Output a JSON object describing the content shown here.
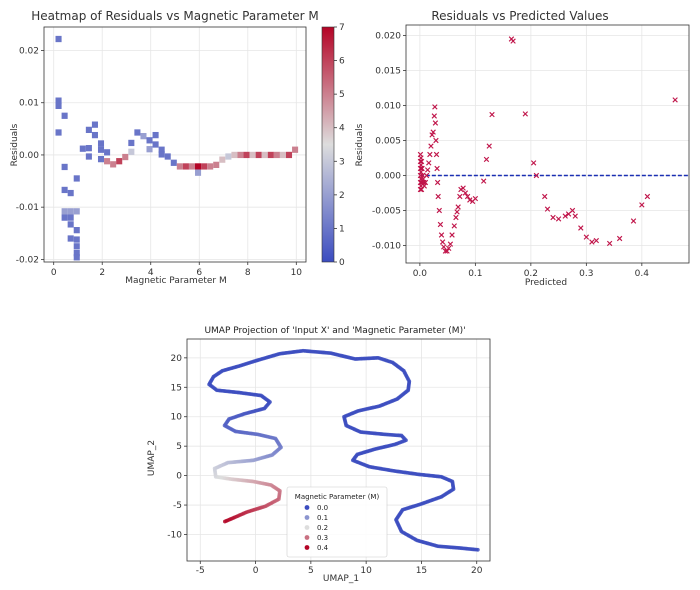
{
  "chart_data": [
    {
      "type": "heatmap",
      "title": "Heatmap of Residuals vs Magnetic Parameter M",
      "xlabel": "Magnetic Parameter M",
      "ylabel": "Residuals",
      "xlim": [
        -0.4,
        10.4
      ],
      "ylim": [
        -0.0205,
        0.0245
      ],
      "xticks": [
        "0",
        "2",
        "4",
        "6",
        "8",
        "10"
      ],
      "yticks": [
        "0.02",
        "0.01",
        "0.00",
        "-0.01",
        "-0.02"
      ],
      "colorbar": {
        "min": 0,
        "max": 7,
        "ticks": [
          "0",
          "1",
          "2",
          "3",
          "4",
          "5",
          "6",
          "7"
        ]
      },
      "cell_width": 0.25,
      "cell_height": 0.0012,
      "cells": [
        {
          "x": 0.2,
          "y": 0.0222,
          "v": 1
        },
        {
          "x": 0.2,
          "y": 0.0104,
          "v": 1
        },
        {
          "x": 0.2,
          "y": 0.0094,
          "v": 1
        },
        {
          "x": 0.2,
          "y": 0.0043,
          "v": 1
        },
        {
          "x": 0.45,
          "y": 0.0075,
          "v": 1
        },
        {
          "x": 0.45,
          "y": -0.0023,
          "v": 1
        },
        {
          "x": 0.45,
          "y": -0.0067,
          "v": 1
        },
        {
          "x": 0.45,
          "y": -0.0108,
          "v": 2
        },
        {
          "x": 0.7,
          "y": -0.0108,
          "v": 2
        },
        {
          "x": 0.45,
          "y": -0.012,
          "v": 1
        },
        {
          "x": 0.7,
          "y": -0.012,
          "v": 1
        },
        {
          "x": 0.7,
          "y": -0.0133,
          "v": 1
        },
        {
          "x": 0.95,
          "y": -0.0108,
          "v": 2
        },
        {
          "x": 0.95,
          "y": -0.0162,
          "v": 1
        },
        {
          "x": 0.95,
          "y": -0.0175,
          "v": 1
        },
        {
          "x": 0.95,
          "y": -0.0188,
          "v": 1
        },
        {
          "x": 0.7,
          "y": -0.016,
          "v": 1
        },
        {
          "x": 0.7,
          "y": -0.0073,
          "v": 1
        },
        {
          "x": 0.95,
          "y": -0.0144,
          "v": 1
        },
        {
          "x": 0.95,
          "y": -0.0196,
          "v": 1
        },
        {
          "x": 0.95,
          "y": -0.0045,
          "v": 1
        },
        {
          "x": 1.2,
          "y": 0.0012,
          "v": 1
        },
        {
          "x": 1.45,
          "y": 0.0013,
          "v": 1
        },
        {
          "x": 1.45,
          "y": 0.0048,
          "v": 1
        },
        {
          "x": 1.7,
          "y": 0.0058,
          "v": 1
        },
        {
          "x": 1.7,
          "y": 0.0038,
          "v": 1
        },
        {
          "x": 1.45,
          "y": -0.0003,
          "v": 1
        },
        {
          "x": 1.95,
          "y": 0.0022,
          "v": 1
        },
        {
          "x": 1.95,
          "y": 0.001,
          "v": 1
        },
        {
          "x": 1.95,
          "y": -0.0008,
          "v": 1
        },
        {
          "x": 2.2,
          "y": 0.0005,
          "v": 1
        },
        {
          "x": 2.2,
          "y": -0.0012,
          "v": 5
        },
        {
          "x": 2.45,
          "y": -0.0018,
          "v": 5
        },
        {
          "x": 2.7,
          "y": -0.0012,
          "v": 6
        },
        {
          "x": 2.95,
          "y": -0.0004,
          "v": 5
        },
        {
          "x": 3.2,
          "y": 0.0006,
          "v": 3
        },
        {
          "x": 3.2,
          "y": 0.0023,
          "v": 1
        },
        {
          "x": 3.45,
          "y": 0.0043,
          "v": 1
        },
        {
          "x": 3.7,
          "y": 0.0036,
          "v": 2
        },
        {
          "x": 3.95,
          "y": 0.0028,
          "v": 1
        },
        {
          "x": 3.95,
          "y": 0.0011,
          "v": 2
        },
        {
          "x": 4.2,
          "y": 0.002,
          "v": 1
        },
        {
          "x": 4.2,
          "y": 0.0038,
          "v": 1
        },
        {
          "x": 4.45,
          "y": 0.001,
          "v": 1
        },
        {
          "x": 4.45,
          "y": 0.0001,
          "v": 1
        },
        {
          "x": 4.7,
          "y": -0.0003,
          "v": 1
        },
        {
          "x": 4.95,
          "y": -0.0015,
          "v": 1
        },
        {
          "x": 5.2,
          "y": -0.0022,
          "v": 5
        },
        {
          "x": 5.45,
          "y": -0.0022,
          "v": 6
        },
        {
          "x": 5.7,
          "y": -0.0022,
          "v": 5
        },
        {
          "x": 5.95,
          "y": -0.0022,
          "v": 7
        },
        {
          "x": 6.2,
          "y": -0.0022,
          "v": 6
        },
        {
          "x": 6.45,
          "y": -0.0022,
          "v": 5
        },
        {
          "x": 6.7,
          "y": -0.0019,
          "v": 5
        },
        {
          "x": 5.95,
          "y": -0.0034,
          "v": 2
        },
        {
          "x": 6.95,
          "y": -0.0009,
          "v": 4
        },
        {
          "x": 7.2,
          "y": -0.0003,
          "v": 3
        },
        {
          "x": 7.45,
          "y": 0.0,
          "v": 4
        },
        {
          "x": 7.7,
          "y": 0.0,
          "v": 5
        },
        {
          "x": 7.95,
          "y": 0.0,
          "v": 6
        },
        {
          "x": 8.2,
          "y": 0.0,
          "v": 4
        },
        {
          "x": 8.45,
          "y": 0.0,
          "v": 6
        },
        {
          "x": 8.7,
          "y": 0.0,
          "v": 4
        },
        {
          "x": 8.95,
          "y": 0.0,
          "v": 6
        },
        {
          "x": 9.2,
          "y": 0.0,
          "v": 5
        },
        {
          "x": 9.45,
          "y": 0.0,
          "v": 4
        },
        {
          "x": 9.7,
          "y": 0.0,
          "v": 6
        },
        {
          "x": 9.95,
          "y": 0.001,
          "v": 5
        }
      ]
    },
    {
      "type": "scatter",
      "title": "Residuals vs Predicted Values",
      "xlabel": "Predicted",
      "ylabel": "Residuals",
      "xlim": [
        -0.025,
        0.485
      ],
      "ylim": [
        -0.0125,
        0.0215
      ],
      "xticks": [
        "0.0",
        "0.1",
        "0.2",
        "0.3",
        "0.4"
      ],
      "yticks": [
        "0.020",
        "0.015",
        "0.010",
        "0.005",
        "0.000",
        "-0.005",
        "-0.010"
      ],
      "marker": "x",
      "color": "#c0154a",
      "baseline": {
        "y": 0,
        "color": "#1a2fb3",
        "style": "dashed"
      },
      "points": [
        [
          0.001,
          0.003
        ],
        [
          0.001,
          0.002
        ],
        [
          0.001,
          0.001
        ],
        [
          0.001,
          0.0
        ],
        [
          0.001,
          -0.001
        ],
        [
          0.001,
          -0.002
        ],
        [
          0.002,
          0.0025
        ],
        [
          0.002,
          0.0015
        ],
        [
          0.002,
          0.0005
        ],
        [
          0.002,
          -0.0005
        ],
        [
          0.002,
          -0.0015
        ],
        [
          0.003,
          0.002
        ],
        [
          0.003,
          0.001
        ],
        [
          0.003,
          -0.001
        ],
        [
          0.003,
          -0.002
        ],
        [
          0.004,
          0.001
        ],
        [
          0.004,
          -0.001
        ],
        [
          0.005,
          0.0
        ],
        [
          0.006,
          -0.0005
        ],
        [
          0.007,
          -0.001
        ],
        [
          0.008,
          -0.0015
        ],
        [
          0.01,
          -0.001
        ],
        [
          0.012,
          0.0
        ],
        [
          0.014,
          0.0008
        ],
        [
          0.016,
          0.0018
        ],
        [
          0.018,
          0.003
        ],
        [
          0.02,
          0.0042
        ],
        [
          0.022,
          0.0058
        ],
        [
          0.024,
          0.0062
        ],
        [
          0.026,
          0.0085
        ],
        [
          0.027,
          0.0098
        ],
        [
          0.028,
          0.0075
        ],
        [
          0.029,
          0.005
        ],
        [
          0.03,
          0.003
        ],
        [
          0.031,
          0.001
        ],
        [
          0.032,
          -0.001
        ],
        [
          0.033,
          -0.003
        ],
        [
          0.035,
          -0.005
        ],
        [
          0.037,
          -0.007
        ],
        [
          0.039,
          -0.0085
        ],
        [
          0.041,
          -0.0095
        ],
        [
          0.043,
          -0.0102
        ],
        [
          0.046,
          -0.0108
        ],
        [
          0.049,
          -0.0108
        ],
        [
          0.052,
          -0.0104
        ],
        [
          0.055,
          -0.0098
        ],
        [
          0.058,
          -0.0085
        ],
        [
          0.062,
          -0.0072
        ],
        [
          0.065,
          -0.006
        ],
        [
          0.067,
          -0.0052
        ],
        [
          0.069,
          -0.0045
        ],
        [
          0.072,
          -0.003
        ],
        [
          0.074,
          -0.002
        ],
        [
          0.078,
          -0.0018
        ],
        [
          0.082,
          -0.0025
        ],
        [
          0.086,
          -0.003
        ],
        [
          0.09,
          -0.0035
        ],
        [
          0.095,
          -0.0037
        ],
        [
          0.1,
          -0.0033
        ],
        [
          0.115,
          -0.0008
        ],
        [
          0.12,
          0.0023
        ],
        [
          0.125,
          0.0042
        ],
        [
          0.13,
          0.0087
        ],
        [
          0.165,
          0.0195
        ],
        [
          0.168,
          0.0192
        ],
        [
          0.19,
          0.0088
        ],
        [
          0.205,
          0.0018
        ],
        [
          0.21,
          0.0
        ],
        [
          0.225,
          -0.003
        ],
        [
          0.23,
          -0.0048
        ],
        [
          0.24,
          -0.006
        ],
        [
          0.25,
          -0.0062
        ],
        [
          0.262,
          -0.0058
        ],
        [
          0.268,
          -0.0055
        ],
        [
          0.275,
          -0.005
        ],
        [
          0.28,
          -0.0058
        ],
        [
          0.29,
          -0.0075
        ],
        [
          0.3,
          -0.0088
        ],
        [
          0.31,
          -0.0095
        ],
        [
          0.318,
          -0.0093
        ],
        [
          0.342,
          -0.0097
        ],
        [
          0.36,
          -0.009
        ],
        [
          0.385,
          -0.0065
        ],
        [
          0.4,
          -0.0042
        ],
        [
          0.41,
          -0.003
        ],
        [
          0.46,
          0.0108
        ]
      ]
    },
    {
      "type": "scatter",
      "title": "UMAP Projection of 'Input X' and 'Magnetic Parameter (M)'",
      "xlabel": "UMAP_1",
      "ylabel": "UMAP_2",
      "xlim": [
        -6.2,
        21.2
      ],
      "ylim": [
        -14.5,
        23.2
      ],
      "xticks": [
        "-5",
        "0",
        "5",
        "10",
        "15",
        "20"
      ],
      "yticks": [
        "20",
        "15",
        "10",
        "5",
        "0",
        "-5",
        "-10"
      ],
      "legend": {
        "title": "Magnetic Parameter (M)",
        "placement": "lower-center",
        "entries": [
          "0.0",
          "0.1",
          "0.2",
          "0.3",
          "0.4"
        ]
      },
      "colors": {
        "low": "#3b4cc0",
        "mid": "#dddddd",
        "high": "#b40426"
      },
      "path": [
        [
          20.1,
          -12.6
        ],
        [
          18.5,
          -12.3
        ],
        [
          16.5,
          -12.0
        ],
        [
          14.6,
          -11.0
        ],
        [
          13.2,
          -9.5
        ],
        [
          12.7,
          -7.5
        ],
        [
          13.3,
          -5.8
        ],
        [
          15.0,
          -4.8
        ],
        [
          16.8,
          -3.6
        ],
        [
          17.9,
          -2.3
        ],
        [
          17.8,
          -1.0
        ],
        [
          16.8,
          -0.2
        ],
        [
          14.8,
          0.2
        ],
        [
          12.5,
          0.8
        ],
        [
          10.3,
          1.5
        ],
        [
          8.8,
          2.6
        ],
        [
          9.2,
          3.6
        ],
        [
          10.8,
          4.5
        ],
        [
          12.6,
          5.3
        ],
        [
          13.6,
          6.0
        ],
        [
          13.2,
          6.8
        ],
        [
          11.7,
          7.0
        ],
        [
          9.5,
          7.4
        ],
        [
          8.2,
          8.5
        ],
        [
          8.0,
          10.0
        ],
        [
          9.3,
          11.0
        ],
        [
          11.2,
          11.8
        ],
        [
          12.8,
          13.0
        ],
        [
          13.8,
          14.5
        ],
        [
          13.9,
          16.0
        ],
        [
          13.4,
          17.8
        ],
        [
          12.4,
          19.2
        ],
        [
          11.1,
          20.0
        ],
        [
          9.0,
          19.8
        ],
        [
          6.8,
          20.8
        ],
        [
          4.3,
          21.2
        ],
        [
          2.2,
          20.7
        ],
        [
          0.2,
          19.6
        ],
        [
          -1.5,
          18.6
        ],
        [
          -3.0,
          17.8
        ],
        [
          -3.8,
          16.8
        ],
        [
          -4.2,
          15.5
        ],
        [
          -3.5,
          14.5
        ],
        [
          -1.5,
          14.1
        ],
        [
          0.5,
          13.6
        ],
        [
          1.3,
          12.5
        ],
        [
          0.8,
          11.4
        ],
        [
          -1.0,
          10.5
        ],
        [
          -2.4,
          9.6
        ],
        [
          -2.8,
          8.5
        ],
        [
          -1.8,
          7.5
        ],
        [
          0.2,
          7.0
        ],
        [
          1.8,
          6.3
        ],
        [
          2.3,
          4.8
        ],
        [
          1.5,
          3.5
        ],
        [
          -0.2,
          2.6
        ],
        [
          -2.5,
          2.2
        ],
        [
          -3.7,
          1.2
        ],
        [
          -3.6,
          -0.2
        ],
        [
          -2.2,
          -0.6
        ],
        [
          -0.2,
          -1.0
        ],
        [
          1.4,
          -1.6
        ],
        [
          2.2,
          -2.6
        ],
        [
          2.1,
          -4.0
        ],
        [
          0.9,
          -5.2
        ],
        [
          -0.8,
          -6.2
        ],
        [
          -1.9,
          -7.1
        ],
        [
          -2.9,
          -7.9
        ]
      ]
    }
  ]
}
